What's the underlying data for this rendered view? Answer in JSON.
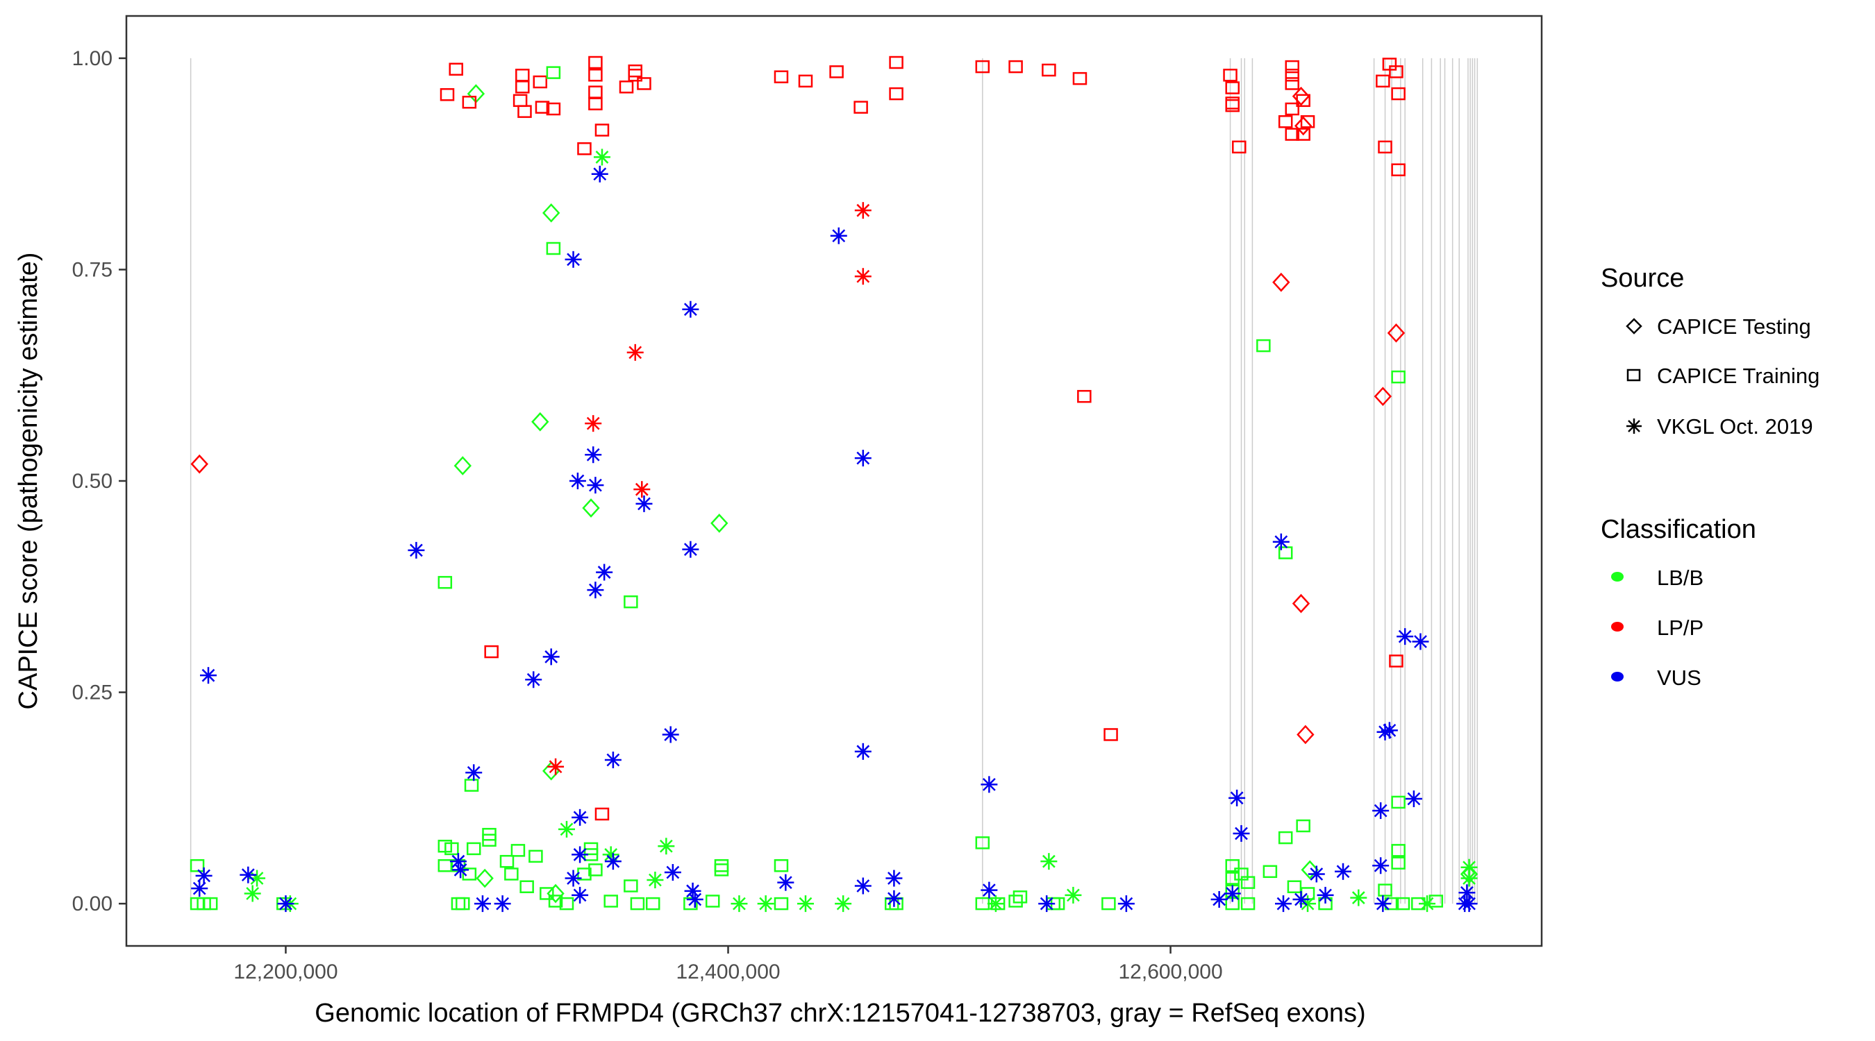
{
  "chart_data": {
    "type": "scatter",
    "title": "",
    "xlabel": "Genomic location of FRMPD4 (GRCh37 chrX:12157041-12738703, gray = RefSeq exons)",
    "ylabel": "CAPICE score (pathogenicity estimate)",
    "xlim": [
      12127958,
      12767786
    ],
    "ylim": [
      -0.05,
      1.05
    ],
    "x_ticks": [
      12200000,
      12400000,
      12600000
    ],
    "x_tick_labels": [
      "12,200,000",
      "12,400,000",
      "12,600,000"
    ],
    "y_ticks": [
      0,
      0.25,
      0.5,
      0.75,
      1.0
    ],
    "y_tick_labels": [
      "0.00",
      "0.25",
      "0.50",
      "0.75",
      "1.00"
    ],
    "grid": false,
    "exons": [
      12157041,
      12515000,
      12627000,
      12632000,
      12633500,
      12637000,
      12692000,
      12697000,
      12700000,
      12704000,
      12706000,
      12714000,
      12718000,
      12722000,
      12724000,
      12727500,
      12730500,
      12734500,
      12735500,
      12736500,
      12737500,
      12738703
    ],
    "legend": {
      "placement": "right",
      "source": {
        "title": "Source",
        "entries": [
          {
            "key": "testing",
            "label": "CAPICE Testing",
            "shape": "diamond"
          },
          {
            "key": "training",
            "label": "CAPICE Training",
            "shape": "square"
          },
          {
            "key": "vkgl",
            "label": "VKGL Oct. 2019",
            "shape": "asterisk"
          }
        ]
      },
      "classification": {
        "title": "Classification",
        "entries": [
          {
            "key": "LB/B",
            "label": "LB/B",
            "color": "#1aff1a"
          },
          {
            "key": "LP/P",
            "label": "LP/P",
            "color": "#ff0000"
          },
          {
            "key": "VUS",
            "label": "VUS",
            "color": "#0000ee"
          }
        ]
      }
    },
    "series": [
      {
        "name": "CAPICE Testing / LP/P",
        "source": "testing",
        "class": "LP/P",
        "points": [
          [
            12161000,
            0.52
          ],
          [
            12650000,
            0.735
          ],
          [
            12659000,
            0.955
          ],
          [
            12660000,
            0.92
          ],
          [
            12659000,
            0.355
          ],
          [
            12661000,
            0.2
          ],
          [
            12696000,
            0.6
          ],
          [
            12702000,
            0.675
          ]
        ]
      },
      {
        "name": "CAPICE Testing / LB/B",
        "source": "testing",
        "class": "LB/B",
        "points": [
          [
            12286000,
            0.958
          ],
          [
            12280000,
            0.518
          ],
          [
            12315000,
            0.57
          ],
          [
            12320000,
            0.817
          ],
          [
            12338000,
            0.468
          ],
          [
            12396000,
            0.45
          ],
          [
            12320000,
            0.157
          ],
          [
            12290000,
            0.03
          ],
          [
            12322000,
            0.012
          ],
          [
            12663000,
            0.04
          ],
          [
            12735000,
            0.035
          ]
        ]
      },
      {
        "name": "CAPICE Training / LP/P",
        "source": "training",
        "class": "LP/P",
        "points": [
          [
            12273000,
            0.957
          ],
          [
            12277000,
            0.987
          ],
          [
            12283000,
            0.948
          ],
          [
            12306000,
            0.95
          ],
          [
            12307000,
            0.966
          ],
          [
            12307000,
            0.98
          ],
          [
            12308000,
            0.937
          ],
          [
            12315000,
            0.972
          ],
          [
            12316000,
            0.942
          ],
          [
            12321000,
            0.94
          ],
          [
            12335000,
            0.893
          ],
          [
            12340000,
            0.995
          ],
          [
            12340000,
            0.98
          ],
          [
            12340000,
            0.96
          ],
          [
            12340000,
            0.946
          ],
          [
            12343000,
            0.915
          ],
          [
            12354000,
            0.966
          ],
          [
            12358000,
            0.985
          ],
          [
            12358000,
            0.98
          ],
          [
            12362000,
            0.97
          ],
          [
            12424000,
            0.978
          ],
          [
            12435000,
            0.973
          ],
          [
            12449000,
            0.984
          ],
          [
            12460000,
            0.942
          ],
          [
            12476000,
            0.995
          ],
          [
            12476000,
            0.958
          ],
          [
            12293000,
            0.298
          ],
          [
            12343000,
            0.106
          ],
          [
            12515000,
            0.99
          ],
          [
            12530000,
            0.99
          ],
          [
            12545000,
            0.986
          ],
          [
            12561000,
            0.6
          ],
          [
            12559000,
            0.976
          ],
          [
            12573000,
            0.2
          ],
          [
            12627000,
            0.98
          ],
          [
            12628000,
            0.965
          ],
          [
            12628000,
            0.947
          ],
          [
            12628000,
            0.944
          ],
          [
            12631000,
            0.895
          ],
          [
            12652000,
            0.925
          ],
          [
            12655000,
            0.99
          ],
          [
            12655000,
            0.98
          ],
          [
            12655000,
            0.97
          ],
          [
            12655000,
            0.94
          ],
          [
            12655000,
            0.91
          ],
          [
            12660000,
            0.95
          ],
          [
            12660000,
            0.91
          ],
          [
            12662000,
            0.925
          ],
          [
            12696000,
            0.973
          ],
          [
            12697000,
            0.895
          ],
          [
            12699000,
            0.993
          ],
          [
            12702000,
            0.984
          ],
          [
            12703000,
            0.958
          ],
          [
            12703000,
            0.868
          ],
          [
            12702000,
            0.287
          ]
        ]
      },
      {
        "name": "CAPICE Training / LB/B",
        "source": "training",
        "class": "LB/B",
        "points": [
          [
            12321000,
            0.983
          ],
          [
            12321000,
            0.775
          ],
          [
            12272000,
            0.38
          ],
          [
            12356000,
            0.357
          ],
          [
            12284000,
            0.14
          ],
          [
            12642000,
            0.66
          ],
          [
            12652000,
            0.415
          ],
          [
            12703000,
            0.623
          ],
          [
            12703000,
            0.12
          ],
          [
            12160000,
            0.045
          ],
          [
            12160000,
            0.0
          ],
          [
            12163000,
            0.0
          ],
          [
            12166000,
            0.0
          ],
          [
            12199000,
            0.0
          ],
          [
            12272000,
            0.068
          ],
          [
            12275000,
            0.065
          ],
          [
            12278000,
            0.045
          ],
          [
            12272000,
            0.045
          ],
          [
            12278000,
            0.0
          ],
          [
            12280000,
            0.0
          ],
          [
            12283000,
            0.035
          ],
          [
            12285000,
            0.065
          ],
          [
            12292000,
            0.082
          ],
          [
            12292000,
            0.075
          ],
          [
            12300000,
            0.05
          ],
          [
            12305000,
            0.063
          ],
          [
            12302000,
            0.035
          ],
          [
            12309000,
            0.02
          ],
          [
            12313000,
            0.056
          ],
          [
            12318000,
            0.012
          ],
          [
            12322000,
            0.003
          ],
          [
            12327000,
            0.0
          ],
          [
            12335000,
            0.035
          ],
          [
            12338000,
            0.065
          ],
          [
            12338000,
            0.058
          ],
          [
            12340000,
            0.04
          ],
          [
            12347000,
            0.003
          ],
          [
            12356000,
            0.021
          ],
          [
            12359000,
            0.0
          ],
          [
            12366000,
            0.0
          ],
          [
            12383000,
            0.0
          ],
          [
            12393000,
            0.003
          ],
          [
            12397000,
            0.045
          ],
          [
            12397000,
            0.04
          ],
          [
            12424000,
            0.045
          ],
          [
            12424000,
            0.0
          ],
          [
            12474000,
            0.0
          ],
          [
            12476000,
            0.0
          ],
          [
            12515000,
            0.072
          ],
          [
            12515000,
            0.0
          ],
          [
            12522000,
            0.0
          ],
          [
            12530000,
            0.003
          ],
          [
            12532000,
            0.008
          ],
          [
            12547000,
            0.0
          ],
          [
            12549000,
            0.0
          ],
          [
            12572000,
            0.0
          ],
          [
            12628000,
            0.045
          ],
          [
            12628000,
            0.03
          ],
          [
            12628000,
            0.015
          ],
          [
            12628000,
            0.0
          ],
          [
            12632000,
            0.035
          ],
          [
            12635000,
            0.025
          ],
          [
            12635000,
            0.0
          ],
          [
            12645000,
            0.038
          ],
          [
            12652000,
            0.078
          ],
          [
            12656000,
            0.02
          ],
          [
            12660000,
            0.092
          ],
          [
            12662000,
            0.012
          ],
          [
            12670000,
            0.0
          ],
          [
            12697000,
            0.016
          ],
          [
            12700000,
            0.0
          ],
          [
            12703000,
            0.063
          ],
          [
            12703000,
            0.048
          ],
          [
            12705000,
            0.0
          ],
          [
            12712000,
            0.0
          ],
          [
            12720000,
            0.003
          ]
        ]
      },
      {
        "name": "VKGL / LP/P",
        "source": "vkgl",
        "class": "LP/P",
        "points": [
          [
            12339000,
            0.568
          ],
          [
            12358000,
            0.652
          ],
          [
            12361000,
            0.49
          ],
          [
            12461000,
            0.82
          ],
          [
            12461000,
            0.742
          ],
          [
            12322000,
            0.162
          ]
        ]
      },
      {
        "name": "VKGL / LB/B",
        "source": "vkgl",
        "class": "LB/B",
        "points": [
          [
            12343000,
            0.883
          ],
          [
            12185000,
            0.012
          ],
          [
            12187000,
            0.03
          ],
          [
            12202000,
            0.0
          ],
          [
            12327000,
            0.088
          ],
          [
            12347000,
            0.058
          ],
          [
            12367000,
            0.028
          ],
          [
            12372000,
            0.068
          ],
          [
            12405000,
            0.0
          ],
          [
            12417000,
            0.0
          ],
          [
            12435000,
            0.0
          ],
          [
            12452000,
            0.0
          ],
          [
            12521000,
            0.0
          ],
          [
            12545000,
            0.05
          ],
          [
            12556000,
            0.01
          ],
          [
            12662000,
            0.0
          ],
          [
            12685000,
            0.007
          ],
          [
            12716000,
            0.0
          ],
          [
            12735000,
            0.043
          ],
          [
            12735000,
            0.03
          ]
        ]
      },
      {
        "name": "VKGL / VUS",
        "source": "vkgl",
        "class": "VUS",
        "points": [
          [
            12342000,
            0.863
          ],
          [
            12330000,
            0.762
          ],
          [
            12450000,
            0.79
          ],
          [
            12383000,
            0.703
          ],
          [
            12339000,
            0.531
          ],
          [
            12332000,
            0.5
          ],
          [
            12340000,
            0.495
          ],
          [
            12362000,
            0.473
          ],
          [
            12461000,
            0.527
          ],
          [
            12259000,
            0.418
          ],
          [
            12383000,
            0.419
          ],
          [
            12340000,
            0.371
          ],
          [
            12344000,
            0.392
          ],
          [
            12320000,
            0.292
          ],
          [
            12312000,
            0.265
          ],
          [
            12165000,
            0.27
          ],
          [
            12374000,
            0.2
          ],
          [
            12348000,
            0.17
          ],
          [
            12285000,
            0.155
          ],
          [
            12461000,
            0.18
          ],
          [
            12333000,
            0.102
          ],
          [
            12518000,
            0.141
          ],
          [
            12650000,
            0.428
          ],
          [
            12630000,
            0.125
          ],
          [
            12632000,
            0.083
          ],
          [
            12695000,
            0.11
          ],
          [
            12697000,
            0.203
          ],
          [
            12699000,
            0.205
          ],
          [
            12706000,
            0.316
          ],
          [
            12713000,
            0.31
          ],
          [
            12710000,
            0.124
          ],
          [
            12161000,
            0.018
          ],
          [
            12163000,
            0.033
          ],
          [
            12183000,
            0.034
          ],
          [
            12200000,
            0.0
          ],
          [
            12278000,
            0.05
          ],
          [
            12279000,
            0.04
          ],
          [
            12289000,
            0.0
          ],
          [
            12298000,
            0.0
          ],
          [
            12333000,
            0.058
          ],
          [
            12330000,
            0.03
          ],
          [
            12333000,
            0.01
          ],
          [
            12348000,
            0.05
          ],
          [
            12375000,
            0.037
          ],
          [
            12384000,
            0.015
          ],
          [
            12385000,
            0.005
          ],
          [
            12426000,
            0.025
          ],
          [
            12461000,
            0.021
          ],
          [
            12475000,
            0.03
          ],
          [
            12475000,
            0.006
          ],
          [
            12518000,
            0.016
          ],
          [
            12544000,
            0.0
          ],
          [
            12580000,
            0.0
          ],
          [
            12622000,
            0.005
          ],
          [
            12628000,
            0.012
          ],
          [
            12651000,
            0.0
          ],
          [
            12659000,
            0.005
          ],
          [
            12666000,
            0.035
          ],
          [
            12670000,
            0.01
          ],
          [
            12678000,
            0.038
          ],
          [
            12695000,
            0.045
          ],
          [
            12696000,
            0.0
          ],
          [
            12734000,
            0.013
          ],
          [
            12735000,
            0.0
          ],
          [
            12733000,
            0.0
          ]
        ]
      }
    ]
  }
}
